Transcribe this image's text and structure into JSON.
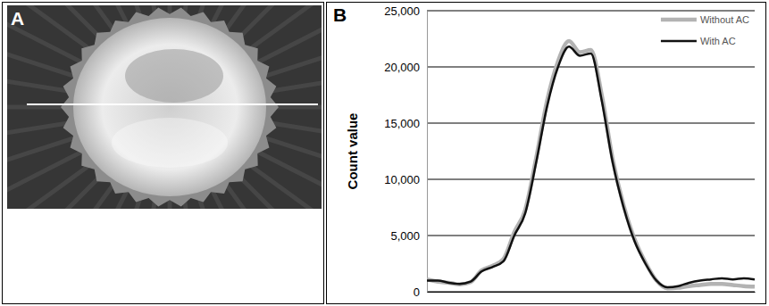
{
  "panel_labels": [
    "A",
    "B"
  ],
  "chart_data": {
    "type": "line",
    "y_label": "Count value",
    "x": [
      0,
      2,
      4,
      6,
      8,
      10,
      12,
      14,
      16,
      18,
      20,
      22,
      24,
      26,
      28,
      30,
      32,
      34,
      36,
      38,
      40,
      42,
      44,
      46,
      48,
      50,
      52,
      54,
      56,
      58,
      60
    ],
    "xlim": [
      0,
      60
    ],
    "ylim": [
      0,
      25000
    ],
    "yticks": [
      0,
      {
        "value": 5000,
        "label": "5,000"
      },
      {
        "value": 10000,
        "label": "10,000"
      },
      {
        "value": 15000,
        "label": "15,000"
      },
      {
        "value": 20000,
        "label": "20,000"
      },
      {
        "value": 25000,
        "label": "25,000"
      }
    ],
    "grid": true,
    "legend": "top-right",
    "tick_labels": "y",
    "series": [
      {
        "name": "Without AC",
        "color": "#b3b3b3",
        "values": [
          1100,
          900,
          800,
          650,
          850,
          1900,
          2300,
          2900,
          5300,
          7300,
          11900,
          17000,
          20500,
          22300,
          21300,
          21500,
          17500,
          11800,
          7700,
          4700,
          2600,
          1000,
          300,
          350,
          500,
          600,
          700,
          700,
          600,
          500,
          450
        ]
      },
      {
        "name": "With AC",
        "color": "#111111",
        "values": [
          1000,
          1000,
          800,
          700,
          900,
          1800,
          2200,
          2700,
          5000,
          7000,
          11500,
          16500,
          20000,
          21800,
          21000,
          21200,
          17000,
          11500,
          7500,
          4500,
          2500,
          1000,
          400,
          500,
          800,
          1000,
          1100,
          1200,
          1100,
          1200,
          1100
        ]
      }
    ]
  }
}
